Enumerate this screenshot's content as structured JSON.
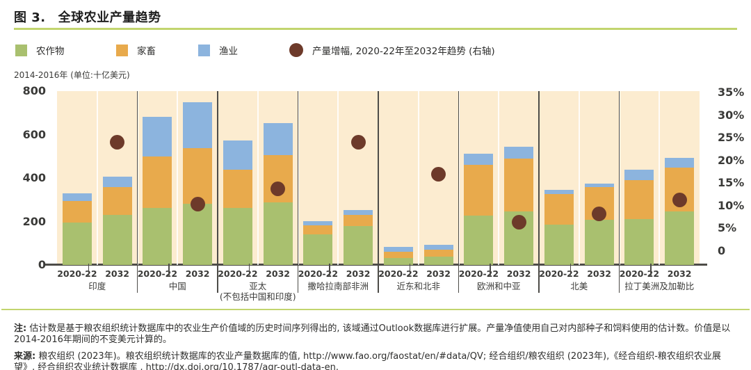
{
  "header": {
    "title_prefix": "图 3.",
    "title": "全球农业产量趋势"
  },
  "legend": {
    "items": [
      {
        "label": "农作物",
        "key": "crops"
      },
      {
        "label": "家畜",
        "key": "livestock"
      },
      {
        "label": "渔业",
        "key": "fish"
      },
      {
        "label": "产量增幅, 2020-22年至2032年趋势 (右轴)",
        "key": "growth_dot"
      }
    ]
  },
  "colors": {
    "crops": "#a9c06f",
    "livestock": "#e8aa4c",
    "fish": "#8cb4de",
    "growth_dot": "#6d3a2a",
    "plot_bg": "#fcecd0",
    "gridline": "#ffffff",
    "axis_line": "#4d4c48",
    "rule_green": "#c2d56e"
  },
  "chart_data": {
    "type": "bar",
    "stacked": true,
    "title": "全球农业产量趋势",
    "unit_label": "2014-2016年 (单位:十亿美元)",
    "legend_position": "top",
    "grid": true,
    "left_axis": {
      "min": 0,
      "max": 800,
      "ticks": [
        800,
        600,
        400,
        200,
        0
      ],
      "gridline_step": 100,
      "unit": "十亿美元 (2014-2016年不变美元)"
    },
    "right_axis": {
      "min": 0,
      "max": 35,
      "ticks": [
        "35%",
        "30%",
        "25%",
        "20%",
        "15%",
        "10%",
        "5%",
        "0"
      ],
      "unit": "产量增幅 %"
    },
    "periods": [
      "2020-22",
      "2032"
    ],
    "series_names": [
      "农作物",
      "家畜",
      "渔业",
      "产量增幅, 2020-22年至2032年趋势 (右轴)"
    ],
    "regions": [
      {
        "label": "印度",
        "sublabel": "",
        "bars": [
          [
            195,
            100,
            35
          ],
          [
            230,
            128,
            50
          ]
        ],
        "growth_pct": 24
      },
      {
        "label": "中国",
        "sublabel": "",
        "bars": [
          [
            264,
            235,
            182
          ],
          [
            283,
            256,
            210
          ]
        ],
        "growth_pct": 10.3
      },
      {
        "label": "亚太",
        "sublabel": "(不包括中国和印度)",
        "bars": [
          [
            262,
            176,
            134
          ],
          [
            288,
            218,
            146
          ]
        ],
        "growth_pct": 13.7
      },
      {
        "label": "撒哈拉南部非洲",
        "sublabel": "",
        "bars": [
          [
            141,
            40,
            22
          ],
          [
            178,
            52,
            23
          ]
        ],
        "growth_pct": 24
      },
      {
        "label": "近东和北非",
        "sublabel": "",
        "bars": [
          [
            32,
            28,
            22
          ],
          [
            40,
            29,
            23
          ]
        ],
        "growth_pct": 17
      },
      {
        "label": "欧洲和中亚",
        "sublabel": "",
        "bars": [
          [
            226,
            235,
            50
          ],
          [
            248,
            242,
            55
          ]
        ],
        "growth_pct": 6.4
      },
      {
        "label": "北美",
        "sublabel": "",
        "bars": [
          [
            187,
            141,
            17
          ],
          [
            208,
            150,
            16
          ]
        ],
        "growth_pct": 8.2
      },
      {
        "label": "拉丁美洲及加勒比",
        "sublabel": "",
        "bars": [
          [
            210,
            182,
            48
          ],
          [
            246,
            201,
            45
          ]
        ],
        "growth_pct": 11.3
      }
    ]
  },
  "notes": {
    "note_label": "注:",
    "note_text": " 估计数是基于粮农组织统计数据库中的农业生产价值域的历史时间序列得出的, 该域通过Outlook数据库进行扩展。产量净值使用自己对内部种子和饲料使用的估计数。价值是以2014-2016年期间的不变美元计算的。",
    "source_label": "来源:",
    "source_text": " 粮农组织 (2023年)。粮农组织统计数据库的农业产量数据库的值, http://www.fao.org/faostat/en/#data/QV; 经合组织/粮农组织 (2023年),《经合组织-粮农组织农业展望》, 经合组织农业统计数据库 , http://dx.doi.org/10.1787/agr-outl-data-en."
  }
}
